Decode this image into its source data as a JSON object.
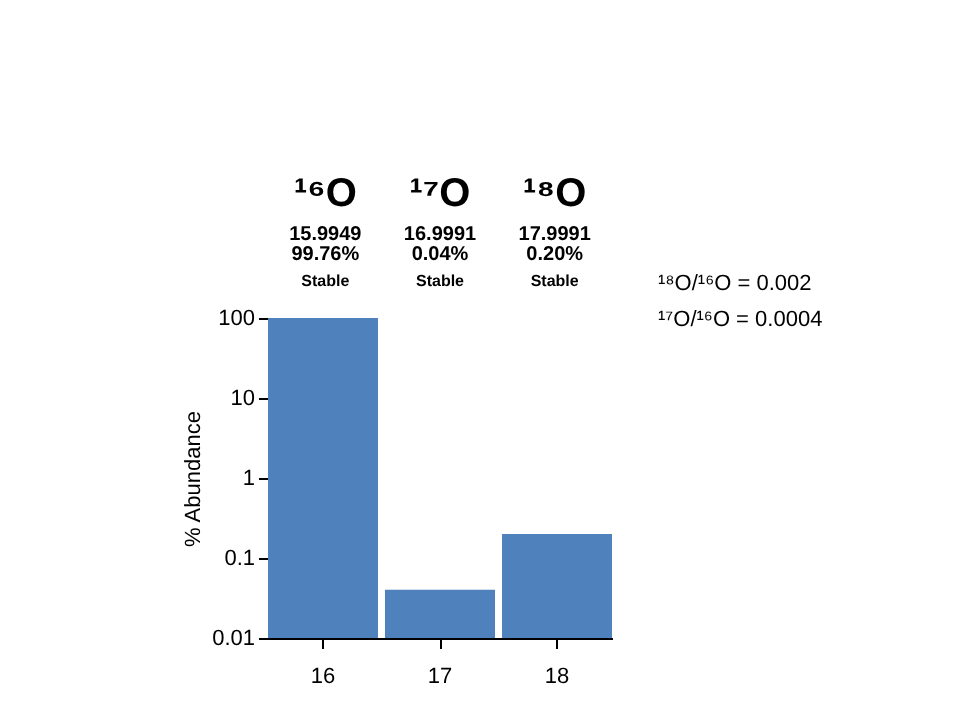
{
  "chart_data": {
    "type": "bar",
    "categories": [
      "16",
      "17",
      "18"
    ],
    "values": [
      99.76,
      0.04,
      0.2
    ],
    "color": "#4f81bd",
    "ylabel": "% Abundance",
    "log": true,
    "ylim": [
      0.01,
      100
    ],
    "yticks": [
      0.01,
      0.1,
      1,
      10,
      100
    ],
    "grid": false,
    "annotations": [
      "¹⁶O",
      "15.9949",
      "99.76%",
      "Stable",
      "¹⁷O",
      "16.9991",
      "0.04%",
      "Stable",
      "¹⁸O",
      "17.9991",
      "0.20%",
      "Stable",
      "¹⁸O/¹⁶O = 0.002",
      "¹⁷O/¹⁶O = 0.0004"
    ]
  }
}
